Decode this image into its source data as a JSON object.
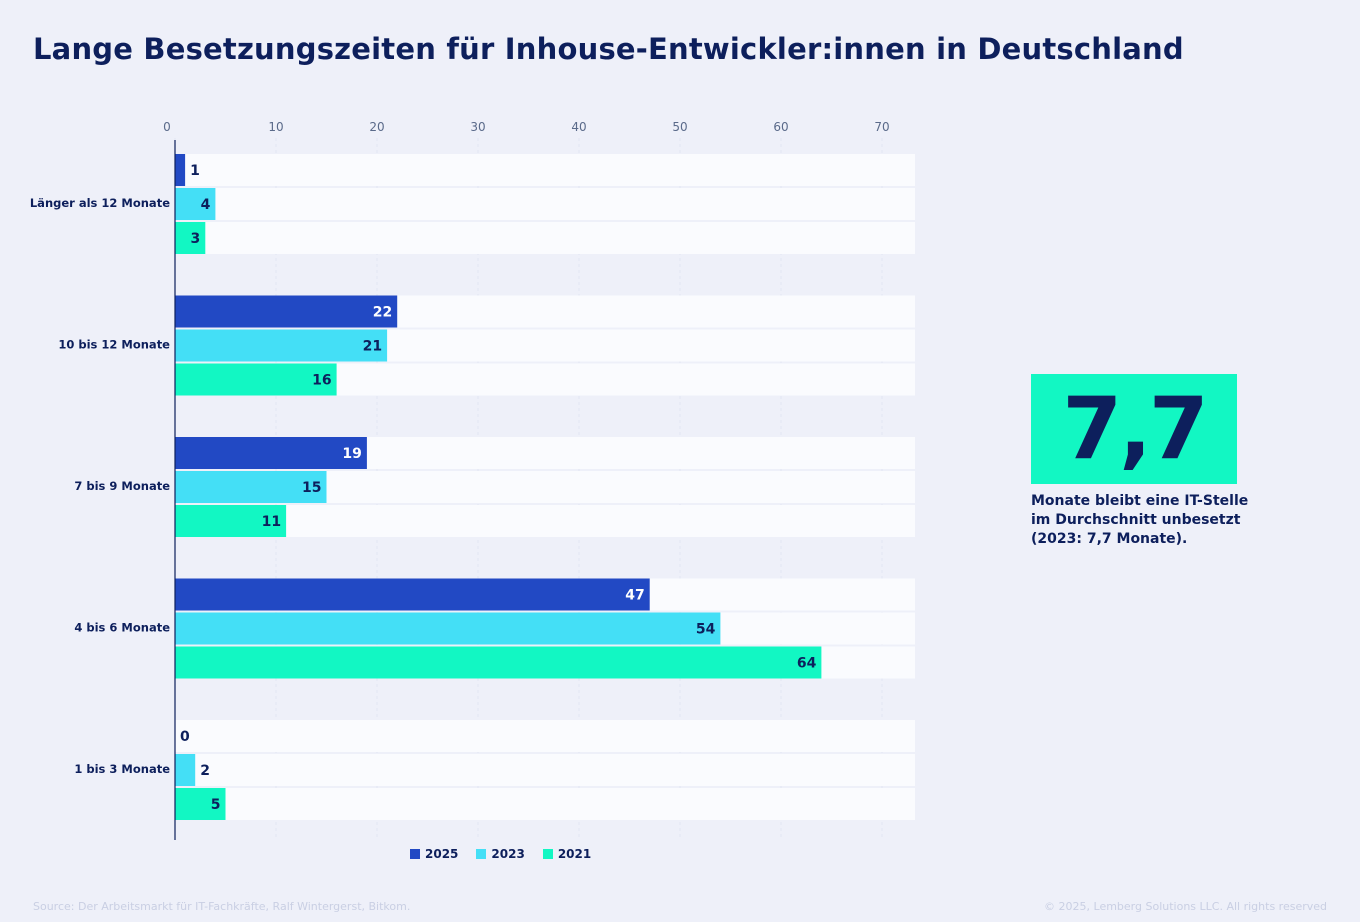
{
  "title": "Lange Besetzungszeiten für Inhouse-Entwickler:innen in Deutschland",
  "chart_data": {
    "type": "bar",
    "orientation": "horizontal",
    "categories": [
      "Länger als 12 Monate",
      "10 bis 12 Monate",
      "7 bis 9 Monate",
      "4 bis 6 Monate",
      "1 bis 3 Monate"
    ],
    "series": [
      {
        "name": "2025",
        "color": "#2249c4",
        "values": [
          1,
          22,
          19,
          47,
          0
        ]
      },
      {
        "name": "2023",
        "color": "#44dff6",
        "values": [
          4,
          21,
          15,
          54,
          2
        ]
      },
      {
        "name": "2021",
        "color": "#12f7c3",
        "values": [
          3,
          16,
          11,
          64,
          5
        ]
      }
    ],
    "xticks": [
      "0",
      "10",
      "20",
      "30",
      "40",
      "50",
      "60",
      "70"
    ],
    "xlim": [
      0,
      73
    ],
    "grid": true,
    "legend": "bottom"
  },
  "kpi": {
    "value": "7,7",
    "text": "Monate bleibt eine IT-Stelle im Durchschnitt unbesetzt (2023: 7,7 Monate)."
  },
  "footer": {
    "source": "Source: Der Arbeitsmarkt für IT-Fachkräfte, Ralf Wintergerst, Bitkom.",
    "copyright": "© 2025, Lemberg Solutions LLC. All rights reserved"
  }
}
